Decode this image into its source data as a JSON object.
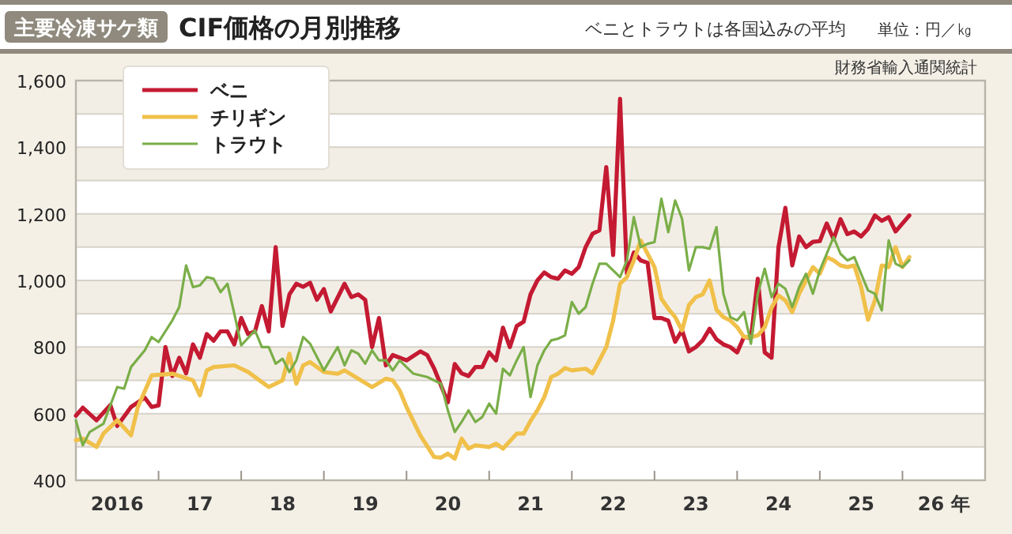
{
  "chart_data": {
    "type": "line",
    "title": "CIF価格の月別推移",
    "subtitle": "主要冷凍サケ類",
    "annotations": [
      "ベニとトラウトは各国込みの平均",
      "単位：円／㎏",
      "財務省輸入通関統計"
    ],
    "xlim": [
      "2016-01",
      "2027-01"
    ],
    "xticks": [
      {
        "value": "2016-07",
        "label": "2016"
      },
      {
        "value": "2017-07",
        "label": "17"
      },
      {
        "value": "2018-07",
        "label": "18"
      },
      {
        "value": "2019-07",
        "label": "19"
      },
      {
        "value": "2020-07",
        "label": "20"
      },
      {
        "value": "2021-07",
        "label": "21"
      },
      {
        "value": "2022-07",
        "label": "22"
      },
      {
        "value": "2023-07",
        "label": "23"
      },
      {
        "value": "2024-07",
        "label": "24"
      },
      {
        "value": "2025-07",
        "label": "25"
      },
      {
        "value": "2026-07",
        "label": "26 年"
      },
      {
        "value": "2017-01",
        "label": null
      },
      {
        "value": "2018-01",
        "label": null
      },
      {
        "value": "2019-01",
        "label": null
      },
      {
        "value": "2020-01",
        "label": null
      },
      {
        "value": "2021-01",
        "label": null
      },
      {
        "value": "2022-01",
        "label": null
      },
      {
        "value": "2023-01",
        "label": null
      },
      {
        "value": "2024-01",
        "label": null
      },
      {
        "value": "2025-01",
        "label": null
      },
      {
        "value": "2026-01",
        "label": null
      }
    ],
    "ylim": [
      400,
      1600
    ],
    "yticks": [
      {
        "value": 400,
        "label": "400"
      },
      {
        "value": 500,
        "label": null
      },
      {
        "value": 600,
        "label": "600"
      },
      {
        "value": 700,
        "label": null
      },
      {
        "value": 800,
        "label": "800"
      },
      {
        "value": 900,
        "label": null
      },
      {
        "value": 1000,
        "label": "1,000"
      },
      {
        "value": 1100,
        "label": null
      },
      {
        "value": 1200,
        "label": "1,200"
      },
      {
        "value": 1300,
        "label": null
      },
      {
        "value": 1400,
        "label": "1,400"
      },
      {
        "value": 1500,
        "label": null
      },
      {
        "value": 1600,
        "label": "1,600"
      }
    ],
    "grid": "y",
    "legend": "top left",
    "series": [
      {
        "name": "ベニ",
        "color": "#c41a32",
        "x": [
          "2016-01",
          "2016-02",
          "2016-04",
          "2016-06",
          "2016-07",
          "2016-09",
          "2016-11",
          "2016-12",
          "2017-01",
          "2017-02",
          "2017-03",
          "2017-04",
          "2017-05",
          "2017-06",
          "2017-07",
          "2017-08",
          "2017-09",
          "2017-10",
          "2017-11",
          "2017-12",
          "2018-01",
          "2018-02",
          "2018-03",
          "2018-04",
          "2018-05",
          "2018-06",
          "2018-07",
          "2018-08",
          "2018-09",
          "2018-10",
          "2018-11",
          "2018-12",
          "2019-01",
          "2019-02",
          "2019-04",
          "2019-05",
          "2019-06",
          "2019-07",
          "2019-08",
          "2019-09",
          "2019-10",
          "2019-11",
          "2020-01",
          "2020-03",
          "2020-04",
          "2020-05",
          "2020-07",
          "2020-08",
          "2020-09",
          "2020-10",
          "2020-11",
          "2020-12",
          "2021-01",
          "2021-02",
          "2021-03",
          "2021-04",
          "2021-05",
          "2021-06",
          "2021-07",
          "2021-08",
          "2021-09",
          "2021-10",
          "2021-11",
          "2021-12",
          "2022-01",
          "2022-02",
          "2022-03",
          "2022-04",
          "2022-05",
          "2022-06",
          "2022-07",
          "2022-08",
          "2022-09",
          "2022-10",
          "2022-11",
          "2022-12",
          "2023-01",
          "2023-02",
          "2023-03",
          "2023-04",
          "2023-05",
          "2023-06",
          "2023-07",
          "2023-08",
          "2023-09",
          "2023-10",
          "2023-11",
          "2023-12",
          "2024-01",
          "2024-02",
          "2024-03",
          "2024-04",
          "2024-05",
          "2024-06",
          "2024-07",
          "2024-08",
          "2024-09",
          "2024-10",
          "2024-11",
          "2024-12",
          "2025-01",
          "2025-02",
          "2025-03",
          "2025-04",
          "2025-05",
          "2025-06",
          "2025-07",
          "2025-08",
          "2025-09",
          "2025-10",
          "2025-11",
          "2025-12",
          "2026-01",
          "2026-02"
        ],
        "values": [
          594,
          618,
          580,
          626,
          563,
          620,
          648,
          620,
          625,
          800,
          713,
          768,
          721,
          808,
          768,
          839,
          819,
          847,
          847,
          808,
          887,
          839,
          847,
          923,
          847,
          1100,
          863,
          958,
          990,
          981,
          993,
          942,
          974,
          907,
          990,
          950,
          958,
          942,
          800,
          887,
          745,
          776,
          760,
          787,
          776,
          736,
          634,
          749,
          721,
          713,
          740,
          740,
          784,
          760,
          858,
          800,
          863,
          876,
          958,
          1000,
          1024,
          1010,
          1005,
          1030,
          1020,
          1040,
          1100,
          1140,
          1150,
          1340,
          1076,
          1545,
          1020,
          1084,
          1060,
          1053,
          887,
          887,
          879,
          816,
          850,
          787,
          800,
          820,
          855,
          823,
          808,
          800,
          784,
          831,
          827,
          1005,
          784,
          768,
          1100,
          1218,
          1045,
          1132,
          1100,
          1116,
          1118,
          1171,
          1124,
          1184,
          1139,
          1147,
          1132,
          1155,
          1195,
          1179,
          1190,
          1147,
          1171,
          1195
        ]
      },
      {
        "name": "チリギン",
        "color": "#f0c04a",
        "x": [
          "2016-01",
          "2016-02",
          "2016-04",
          "2016-05",
          "2016-07",
          "2016-09",
          "2016-10",
          "2016-12",
          "2017-03",
          "2017-06",
          "2017-07",
          "2017-08",
          "2017-09",
          "2017-12",
          "2018-02",
          "2018-04",
          "2018-05",
          "2018-07",
          "2018-08",
          "2018-09",
          "2018-10",
          "2018-11",
          "2019-01",
          "2019-03",
          "2019-04",
          "2019-06",
          "2019-08",
          "2019-10",
          "2019-11",
          "2019-12",
          "2020-01",
          "2020-03",
          "2020-05",
          "2020-06",
          "2020-07",
          "2020-08",
          "2020-09",
          "2020-10",
          "2020-11",
          "2021-01",
          "2021-02",
          "2021-03",
          "2021-05",
          "2021-06",
          "2021-07",
          "2021-08",
          "2021-09",
          "2021-10",
          "2021-11",
          "2021-12",
          "2022-01",
          "2022-03",
          "2022-04",
          "2022-05",
          "2022-06",
          "2022-07",
          "2022-08",
          "2022-09",
          "2022-10",
          "2022-11",
          "2022-12",
          "2023-01",
          "2023-02",
          "2023-03",
          "2023-04",
          "2023-05",
          "2023-06",
          "2023-07",
          "2023-08",
          "2023-09",
          "2023-10",
          "2023-11",
          "2023-12",
          "2024-01",
          "2024-02",
          "2024-03",
          "2024-04",
          "2024-05",
          "2024-06",
          "2024-07",
          "2024-08",
          "2024-09",
          "2024-10",
          "2024-11",
          "2024-12",
          "2025-01",
          "2025-02",
          "2025-03",
          "2025-04",
          "2025-05",
          "2025-06",
          "2025-07",
          "2025-08",
          "2025-09",
          "2025-10",
          "2025-11",
          "2025-12",
          "2026-01",
          "2026-02"
        ],
        "values": [
          520,
          525,
          500,
          540,
          580,
          535,
          620,
          715,
          720,
          700,
          655,
          730,
          740,
          745,
          725,
          695,
          680,
          700,
          780,
          690,
          745,
          755,
          725,
          720,
          730,
          705,
          680,
          705,
          700,
          670,
          620,
          535,
          470,
          468,
          480,
          465,
          525,
          495,
          505,
          500,
          510,
          495,
          540,
          540,
          578,
          610,
          650,
          710,
          720,
          737,
          730,
          735,
          721,
          760,
          800,
          880,
          990,
          1010,
          1060,
          1120,
          1080,
          1040,
          945,
          915,
          890,
          850,
          926,
          950,
          958,
          1000,
          912,
          890,
          880,
          860,
          830,
          830,
          835,
          860,
          918,
          955,
          940,
          905,
          960,
          1000,
          1040,
          1020,
          1070,
          1060,
          1045,
          1040,
          1045,
          980,
          882,
          940,
          1045,
          1040,
          1100,
          1040,
          1070
        ]
      },
      {
        "name": "トラウト",
        "color": "#7aae48",
        "x": [
          "2016-01",
          "2016-02",
          "2016-03",
          "2016-05",
          "2016-06",
          "2016-07",
          "2016-08",
          "2016-09",
          "2016-11",
          "2016-12",
          "2017-01",
          "2017-03",
          "2017-04",
          "2017-05",
          "2017-06",
          "2017-07",
          "2017-08",
          "2017-09",
          "2017-10",
          "2017-11",
          "2017-12",
          "2018-01",
          "2018-03",
          "2018-04",
          "2018-05",
          "2018-06",
          "2018-07",
          "2018-08",
          "2018-09",
          "2018-10",
          "2018-11",
          "2018-12",
          "2019-01",
          "2019-03",
          "2019-04",
          "2019-05",
          "2019-06",
          "2019-07",
          "2019-08",
          "2019-09",
          "2019-10",
          "2019-11",
          "2019-12",
          "2020-02",
          "2020-04",
          "2020-06",
          "2020-07",
          "2020-08",
          "2020-09",
          "2020-10",
          "2020-11",
          "2020-12",
          "2021-01",
          "2021-02",
          "2021-03",
          "2021-04",
          "2021-05",
          "2021-06",
          "2021-07",
          "2021-08",
          "2021-09",
          "2021-10",
          "2021-11",
          "2021-12",
          "2022-01",
          "2022-02",
          "2022-03",
          "2022-04",
          "2022-05",
          "2022-06",
          "2022-07",
          "2022-08",
          "2022-09",
          "2022-10",
          "2022-11",
          "2022-12",
          "2023-01",
          "2023-02",
          "2023-03",
          "2023-04",
          "2023-05",
          "2023-06",
          "2023-07",
          "2023-08",
          "2023-09",
          "2023-10",
          "2023-11",
          "2023-12",
          "2024-01",
          "2024-02",
          "2024-03",
          "2024-04",
          "2024-05",
          "2024-06",
          "2024-07",
          "2024-08",
          "2024-09",
          "2024-10",
          "2024-11",
          "2024-12",
          "2025-01",
          "2025-02",
          "2025-03",
          "2025-04",
          "2025-05",
          "2025-06",
          "2025-07",
          "2025-08",
          "2025-09",
          "2025-10",
          "2025-11",
          "2025-12",
          "2026-01",
          "2026-02"
        ],
        "values": [
          580,
          505,
          545,
          570,
          625,
          680,
          675,
          740,
          790,
          830,
          815,
          880,
          920,
          1045,
          980,
          985,
          1010,
          1005,
          965,
          990,
          900,
          805,
          850,
          800,
          800,
          750,
          765,
          725,
          760,
          830,
          810,
          770,
          730,
          800,
          745,
          790,
          780,
          750,
          790,
          760,
          760,
          730,
          760,
          720,
          710,
          690,
          610,
          545,
          575,
          610,
          575,
          590,
          630,
          600,
          735,
          715,
          760,
          800,
          650,
          745,
          790,
          820,
          825,
          835,
          935,
          900,
          920,
          990,
          1050,
          1050,
          1030,
          1010,
          1060,
          1190,
          1100,
          1110,
          1115,
          1245,
          1145,
          1240,
          1185,
          1030,
          1100,
          1100,
          1095,
          1160,
          960,
          890,
          880,
          905,
          810,
          960,
          1035,
          950,
          990,
          975,
          920,
          980,
          1020,
          960,
          1030,
          1080,
          1130,
          1080,
          1060,
          1070,
          1020,
          970,
          960,
          910,
          1120,
          1050,
          1040,
          1060
        ]
      }
    ]
  }
}
